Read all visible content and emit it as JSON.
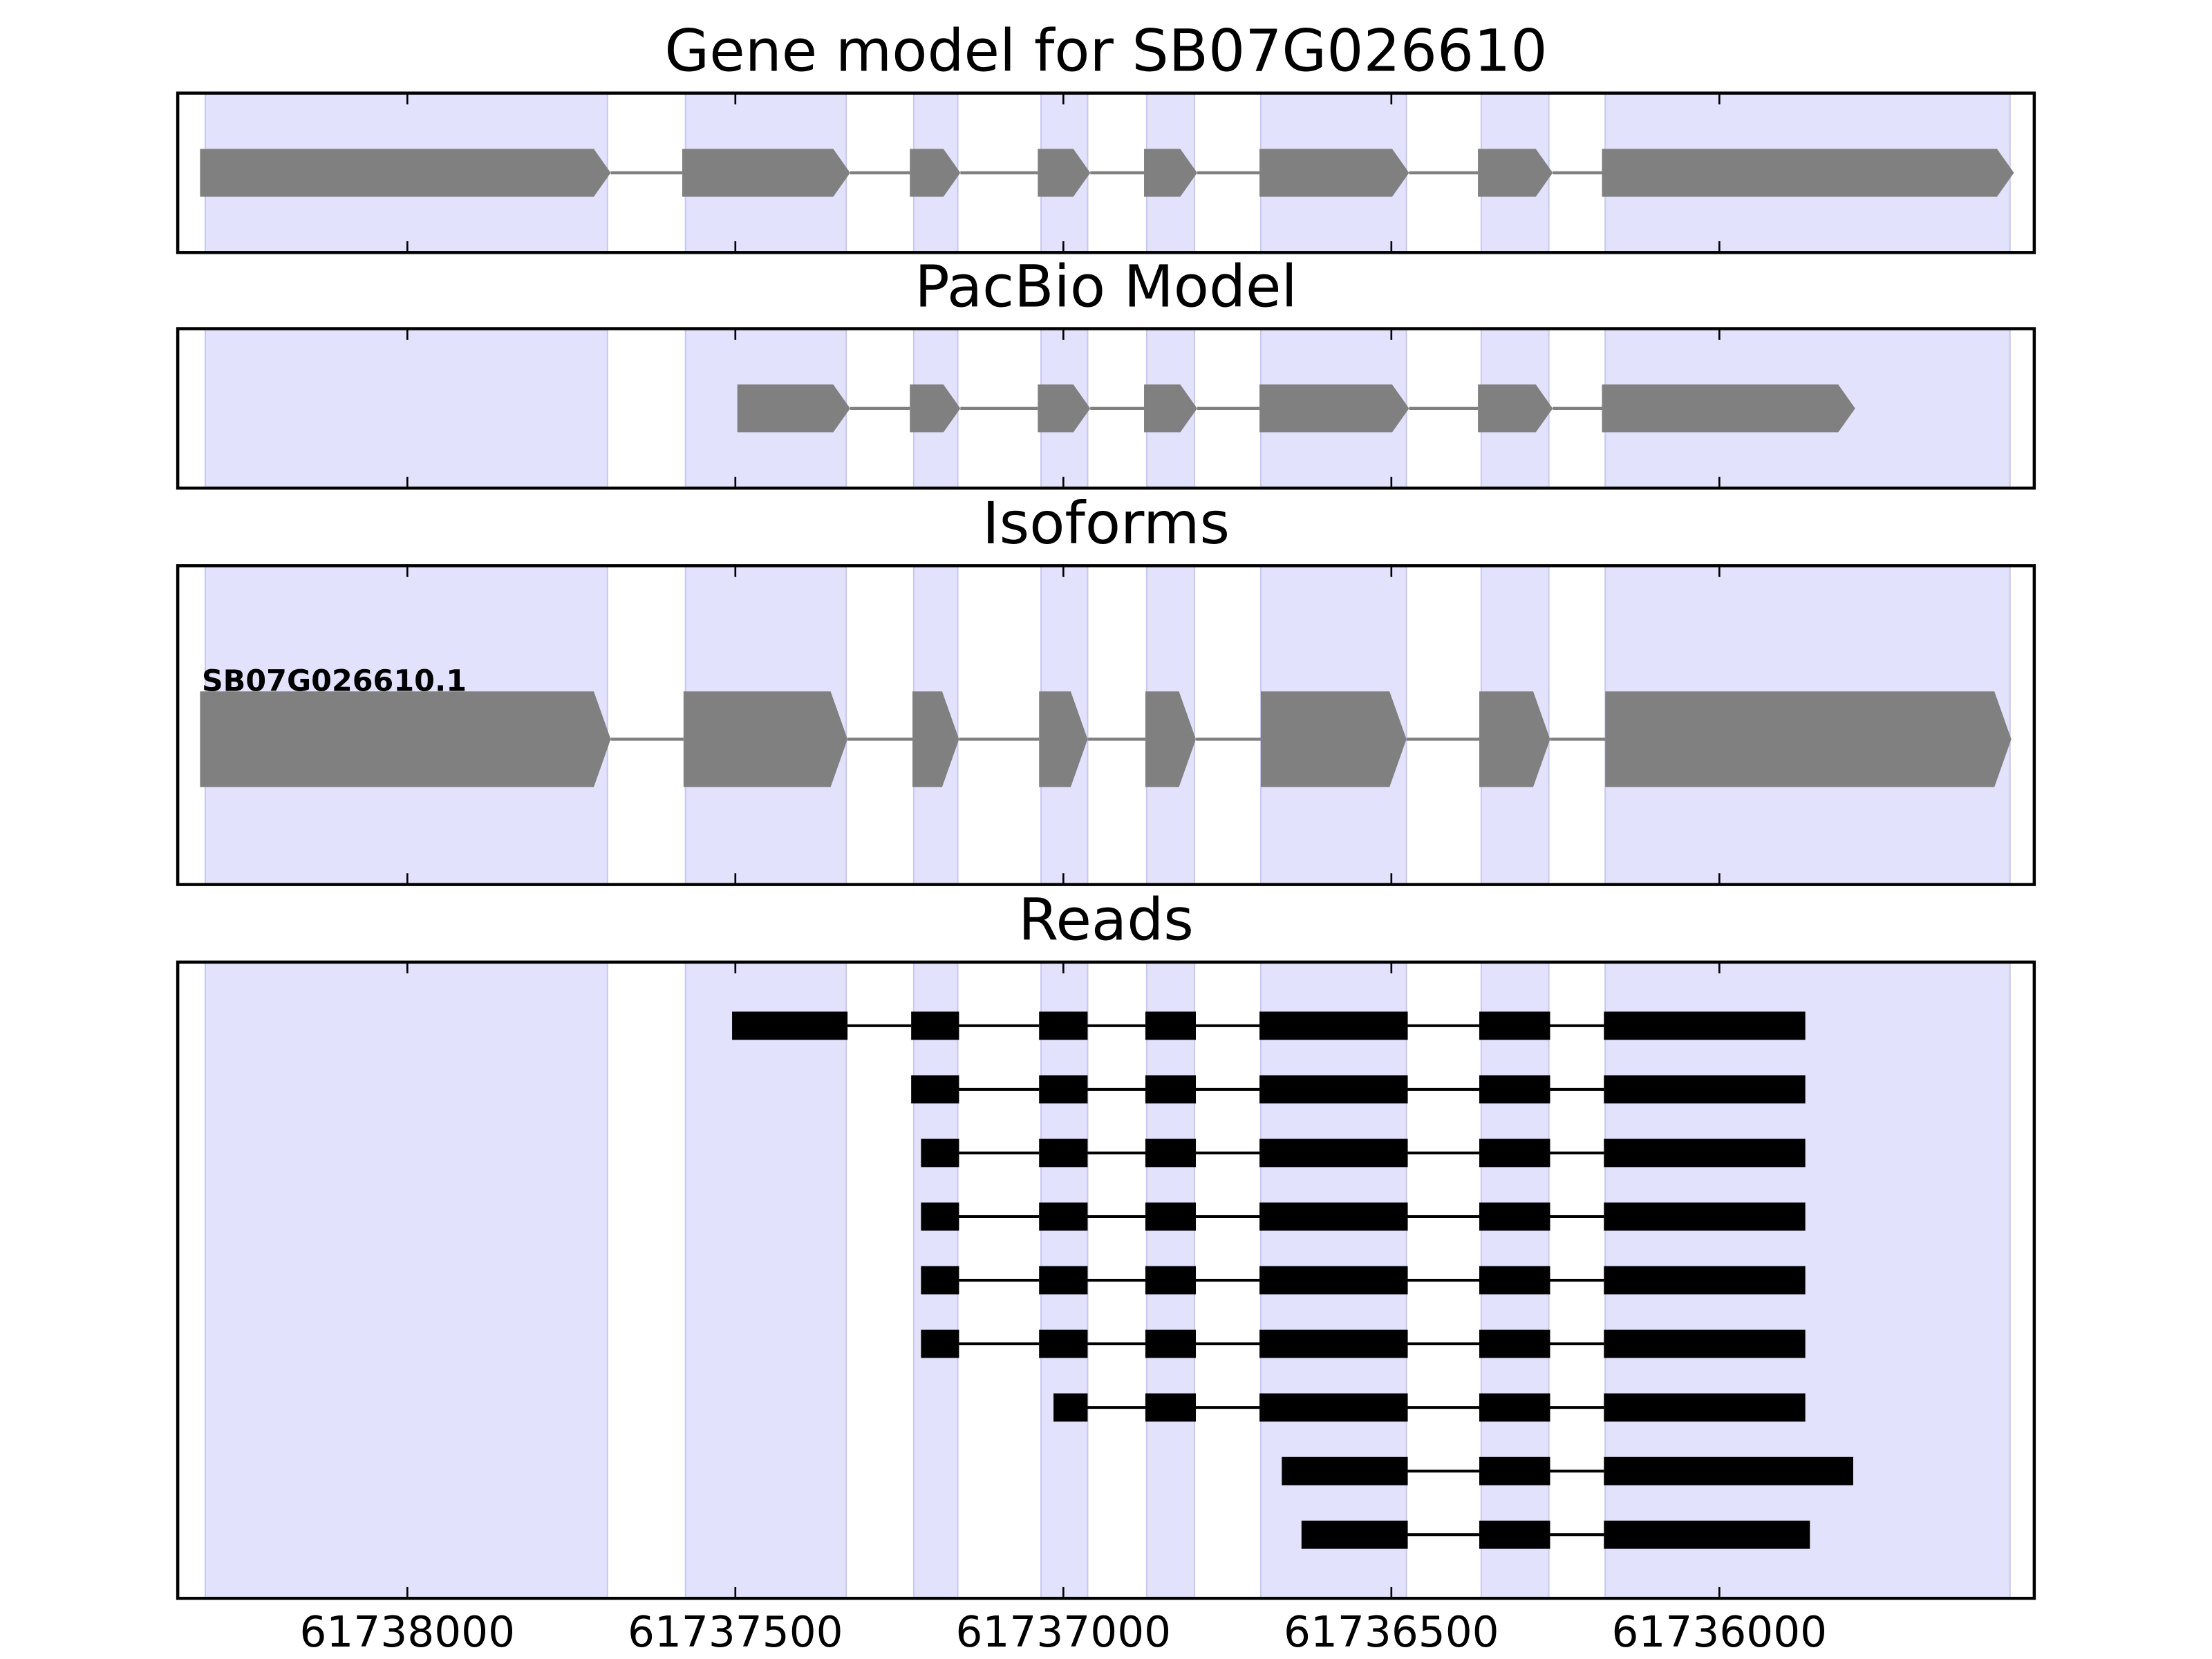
{
  "chart_data": [
    {
      "type": "gene",
      "title": "Gene model for SB07G026610",
      "xlim": [
        61738350,
        61735520
      ],
      "xticks": [
        61738000,
        61737500,
        61737000,
        61736500,
        61736000
      ],
      "tick_labels": false,
      "color": "#808080",
      "region_color": "#e2e2fc",
      "regions": [
        [
          61738308,
          61737695
        ],
        [
          61737576,
          61737331
        ],
        [
          61737228,
          61737161
        ],
        [
          61737034,
          61736963
        ],
        [
          61736873,
          61736800
        ],
        [
          61736699,
          61736477
        ],
        [
          61736363,
          61736260
        ],
        [
          61736174,
          61735557
        ]
      ],
      "features": [
        {
          "exons": [
            [
              61738316,
              61737690
            ],
            [
              61737581,
              61737325
            ],
            [
              61737234,
              61737157
            ],
            [
              61737039,
              61736959
            ],
            [
              61736877,
              61736796
            ],
            [
              61736701,
              61736473
            ],
            [
              61736368,
              61736254
            ],
            [
              61736179,
              61735551
            ]
          ]
        }
      ]
    },
    {
      "type": "gene",
      "title": "PacBio Model",
      "xlim": [
        61738350,
        61735520
      ],
      "xticks": [
        61738000,
        61737500,
        61737000,
        61736500,
        61736000
      ],
      "tick_labels": false,
      "color": "#808080",
      "region_color": "#e2e2fc",
      "regions": [
        [
          61738308,
          61737695
        ],
        [
          61737576,
          61737331
        ],
        [
          61737228,
          61737161
        ],
        [
          61737034,
          61736963
        ],
        [
          61736873,
          61736800
        ],
        [
          61736699,
          61736477
        ],
        [
          61736363,
          61736260
        ],
        [
          61736174,
          61735557
        ]
      ],
      "features": [
        {
          "exons": [
            [
              61737497,
              61737325
            ],
            [
              61737234,
              61737157
            ],
            [
              61737039,
              61736959
            ],
            [
              61736877,
              61736796
            ],
            [
              61736701,
              61736473
            ],
            [
              61736368,
              61736254
            ],
            [
              61736179,
              61735793
            ]
          ]
        }
      ]
    },
    {
      "type": "gene",
      "title": "Isoforms",
      "xlim": [
        61738350,
        61735520
      ],
      "xticks": [
        61738000,
        61737500,
        61737000,
        61736500,
        61736000
      ],
      "tick_labels": false,
      "color": "#808080",
      "region_color": "#e2e2fc",
      "regions": [
        [
          61738308,
          61737695
        ],
        [
          61737576,
          61737331
        ],
        [
          61737228,
          61737161
        ],
        [
          61737034,
          61736963
        ],
        [
          61736873,
          61736800
        ],
        [
          61736699,
          61736477
        ],
        [
          61736363,
          61736260
        ],
        [
          61736174,
          61735557
        ]
      ],
      "features": [
        {
          "name": "SB07G026610.1",
          "exons": [
            [
              61738316,
              61737690
            ],
            [
              61737579,
              61737329
            ],
            [
              61737230,
              61737159
            ],
            [
              61737037,
              61736963
            ],
            [
              61736875,
              61736798
            ],
            [
              61736699,
              61736477
            ],
            [
              61736366,
              61736258
            ],
            [
              61736174,
              61735555
            ]
          ]
        }
      ]
    },
    {
      "type": "reads",
      "title": "Reads",
      "xlim": [
        61738350,
        61735520
      ],
      "xticks": [
        61738000,
        61737500,
        61737000,
        61736500,
        61736000
      ],
      "tick_labels": true,
      "color": "#000000",
      "region_color": "#e2e2fc",
      "regions": [
        [
          61738308,
          61737695
        ],
        [
          61737576,
          61737331
        ],
        [
          61737228,
          61737161
        ],
        [
          61737034,
          61736963
        ],
        [
          61736873,
          61736800
        ],
        [
          61736699,
          61736477
        ],
        [
          61736363,
          61736260
        ],
        [
          61736174,
          61735557
        ]
      ],
      "features": [
        {
          "exons": [
            [
              61737505,
              61737329
            ],
            [
              61737232,
              61737159
            ],
            [
              61737037,
              61736963
            ],
            [
              61736875,
              61736798
            ],
            [
              61736701,
              61736475
            ],
            [
              61736366,
              61736258
            ],
            [
              61736176,
              61735869
            ]
          ]
        },
        {
          "exons": [
            [
              61737232,
              61737159
            ],
            [
              61737037,
              61736963
            ],
            [
              61736875,
              61736798
            ],
            [
              61736701,
              61736475
            ],
            [
              61736366,
              61736258
            ],
            [
              61736176,
              61735869
            ]
          ]
        },
        {
          "exons": [
            [
              61737217,
              61737159
            ],
            [
              61737037,
              61736963
            ],
            [
              61736875,
              61736798
            ],
            [
              61736701,
              61736475
            ],
            [
              61736366,
              61736258
            ],
            [
              61736176,
              61735869
            ]
          ]
        },
        {
          "exons": [
            [
              61737217,
              61737159
            ],
            [
              61737037,
              61736963
            ],
            [
              61736875,
              61736798
            ],
            [
              61736701,
              61736475
            ],
            [
              61736366,
              61736258
            ],
            [
              61736176,
              61735869
            ]
          ]
        },
        {
          "exons": [
            [
              61737217,
              61737159
            ],
            [
              61737037,
              61736963
            ],
            [
              61736875,
              61736798
            ],
            [
              61736701,
              61736475
            ],
            [
              61736366,
              61736258
            ],
            [
              61736176,
              61735869
            ]
          ]
        },
        {
          "exons": [
            [
              61737217,
              61737159
            ],
            [
              61737037,
              61736963
            ],
            [
              61736875,
              61736798
            ],
            [
              61736701,
              61736475
            ],
            [
              61736366,
              61736258
            ],
            [
              61736176,
              61735869
            ]
          ]
        },
        {
          "exons": [
            [
              61737015,
              61736963
            ],
            [
              61736875,
              61736798
            ],
            [
              61736701,
              61736475
            ],
            [
              61736366,
              61736258
            ],
            [
              61736176,
              61735869
            ]
          ]
        },
        {
          "exons": [
            [
              61736667,
              61736475
            ],
            [
              61736366,
              61736258
            ],
            [
              61736176,
              61735796
            ]
          ]
        },
        {
          "exons": [
            [
              61736637,
              61736475
            ],
            [
              61736366,
              61736258
            ],
            [
              61736176,
              61735862
            ]
          ]
        }
      ]
    }
  ]
}
